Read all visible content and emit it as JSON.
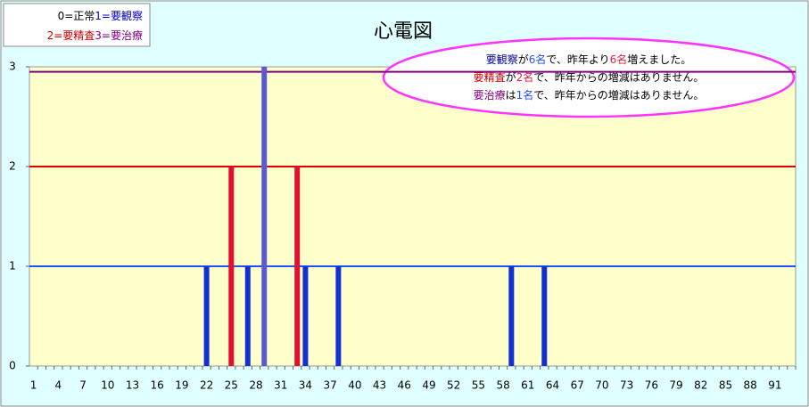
{
  "chart_data": {
    "type": "bar",
    "title": "心電図",
    "categories": [
      1,
      null,
      null,
      4,
      null,
      null,
      7,
      null,
      null,
      10,
      null,
      null,
      13,
      null,
      null,
      16,
      null,
      null,
      19,
      null,
      null,
      22,
      null,
      null,
      25,
      null,
      null,
      28,
      null,
      null,
      31,
      null,
      null,
      34,
      null,
      null,
      37,
      null,
      null,
      40,
      null,
      null,
      43,
      null,
      null,
      46,
      null,
      null,
      49,
      null,
      null,
      52,
      null,
      null,
      55,
      null,
      null,
      58,
      null,
      null,
      61,
      null,
      null,
      64,
      null,
      null,
      67,
      null,
      null,
      70,
      null,
      null,
      73,
      null,
      null,
      76,
      null,
      null,
      79,
      null,
      null,
      82,
      null,
      null,
      85,
      null,
      null,
      88,
      null,
      null,
      91,
      null,
      null
    ],
    "values": [
      0,
      0,
      0,
      0,
      0,
      0,
      0,
      0,
      0,
      0,
      0,
      0,
      0,
      0,
      0,
      0,
      0,
      0,
      0,
      0,
      0,
      1,
      0,
      0,
      2,
      0,
      1,
      0,
      3,
      0,
      0,
      0,
      2,
      1,
      0,
      0,
      0,
      1,
      0,
      0,
      0,
      0,
      0,
      0,
      0,
      0,
      0,
      0,
      0,
      0,
      0,
      0,
      0,
      0,
      0,
      0,
      0,
      0,
      1,
      0,
      0,
      0,
      1,
      0,
      0,
      0,
      0,
      0,
      0,
      0,
      0,
      0,
      0,
      0,
      0,
      0,
      0,
      0,
      0,
      0,
      0,
      0,
      0,
      0,
      0,
      0,
      0,
      0,
      0,
      0,
      0,
      0,
      0
    ],
    "level_colors": [
      null,
      "#1030d0",
      "#e01030",
      "#5a5ad0"
    ],
    "ylim": [
      0,
      3
    ],
    "yticks": [
      0,
      1,
      2,
      3
    ],
    "reference_lines": [
      {
        "value": 1,
        "color": "#2050ff"
      },
      {
        "value": 2,
        "color": "#dd0000"
      },
      {
        "value": 2.95,
        "color": "#800080"
      }
    ],
    "legend": [
      [
        {
          "text": "0=正常",
          "color": "#000000"
        },
        {
          "text": "1=要観察",
          "color": "#0000cc"
        }
      ],
      [
        {
          "text": "2=要精査",
          "color": "#cc0000"
        },
        {
          "text": "3=要治療",
          "color": "#800080"
        }
      ]
    ],
    "annotation": [
      [
        {
          "text": "要観察",
          "color": "#000099"
        },
        {
          "text": "が",
          "color": "#000000"
        },
        {
          "text": "6名",
          "color": "#2050ff"
        },
        {
          "text": "で、昨年より",
          "color": "#000000"
        },
        {
          "text": "6名",
          "color": "#e02040"
        },
        {
          "text": "増えました。",
          "color": "#000000"
        }
      ],
      [
        {
          "text": "要精査",
          "color": "#cc0000"
        },
        {
          "text": "が",
          "color": "#000000"
        },
        {
          "text": "2名",
          "color": "#e02040"
        },
        {
          "text": "で、昨年からの増減はありません。",
          "color": "#000000"
        }
      ],
      [
        {
          "text": "要治療",
          "color": "#800080"
        },
        {
          "text": "は",
          "color": "#000000"
        },
        {
          "text": "1名",
          "color": "#2050ff"
        },
        {
          "text": "で、昨年からの増減はありません。",
          "color": "#000000"
        }
      ]
    ]
  }
}
